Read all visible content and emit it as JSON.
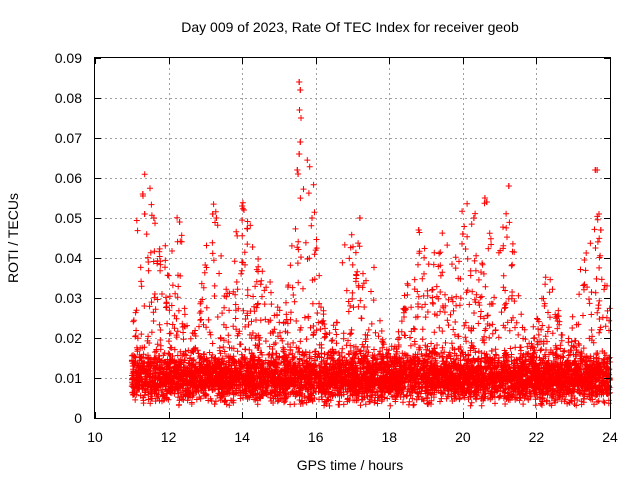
{
  "chart_data": {
    "type": "scatter",
    "title": "Day 009 of 2023, Rate Of TEC Index for receiver geob",
    "xlabel": "GPS time / hours",
    "ylabel": "ROTI / TECUs",
    "xlim": [
      10,
      24
    ],
    "ylim": [
      0,
      0.09
    ],
    "xticks": [
      10,
      12,
      14,
      16,
      18,
      20,
      22,
      24
    ],
    "yticks": [
      0,
      0.01,
      0.02,
      0.03,
      0.04,
      0.05,
      0.06,
      0.07,
      0.08,
      0.09
    ],
    "xtick_labels": [
      "10",
      "12",
      "14",
      "16",
      "18",
      "20",
      "22",
      "24"
    ],
    "ytick_labels": [
      "0",
      "0.01",
      "0.02",
      "0.03",
      "0.04",
      "0.05",
      "0.06",
      "0.07",
      "0.08",
      "0.09"
    ],
    "grid": true,
    "marker": "+",
    "color": "#ff0000",
    "series": [
      {
        "name": "ROTI",
        "x_range": [
          11.0,
          24.0
        ],
        "baseline_level": 0.01,
        "notable_points": [
          {
            "x": 11.3,
            "y": 0.056
          },
          {
            "x": 11.35,
            "y": 0.051
          },
          {
            "x": 11.6,
            "y": 0.05
          },
          {
            "x": 12.3,
            "y": 0.049
          },
          {
            "x": 13.2,
            "y": 0.051
          },
          {
            "x": 13.3,
            "y": 0.05
          },
          {
            "x": 14.0,
            "y": 0.053
          },
          {
            "x": 14.05,
            "y": 0.052
          },
          {
            "x": 15.55,
            "y": 0.084
          },
          {
            "x": 15.58,
            "y": 0.082
          },
          {
            "x": 15.56,
            "y": 0.077
          },
          {
            "x": 15.6,
            "y": 0.075
          },
          {
            "x": 15.58,
            "y": 0.069
          },
          {
            "x": 15.55,
            "y": 0.066
          },
          {
            "x": 15.5,
            "y": 0.062
          },
          {
            "x": 15.52,
            "y": 0.061
          },
          {
            "x": 15.9,
            "y": 0.05
          },
          {
            "x": 17.2,
            "y": 0.05
          },
          {
            "x": 18.8,
            "y": 0.047
          },
          {
            "x": 20.0,
            "y": 0.046
          },
          {
            "x": 20.3,
            "y": 0.05
          },
          {
            "x": 20.6,
            "y": 0.055
          },
          {
            "x": 20.65,
            "y": 0.054
          },
          {
            "x": 21.25,
            "y": 0.058
          },
          {
            "x": 23.6,
            "y": 0.062
          },
          {
            "x": 23.65,
            "y": 0.062
          },
          {
            "x": 23.7,
            "y": 0.051
          },
          {
            "x": 23.75,
            "y": 0.047
          }
        ]
      }
    ]
  }
}
